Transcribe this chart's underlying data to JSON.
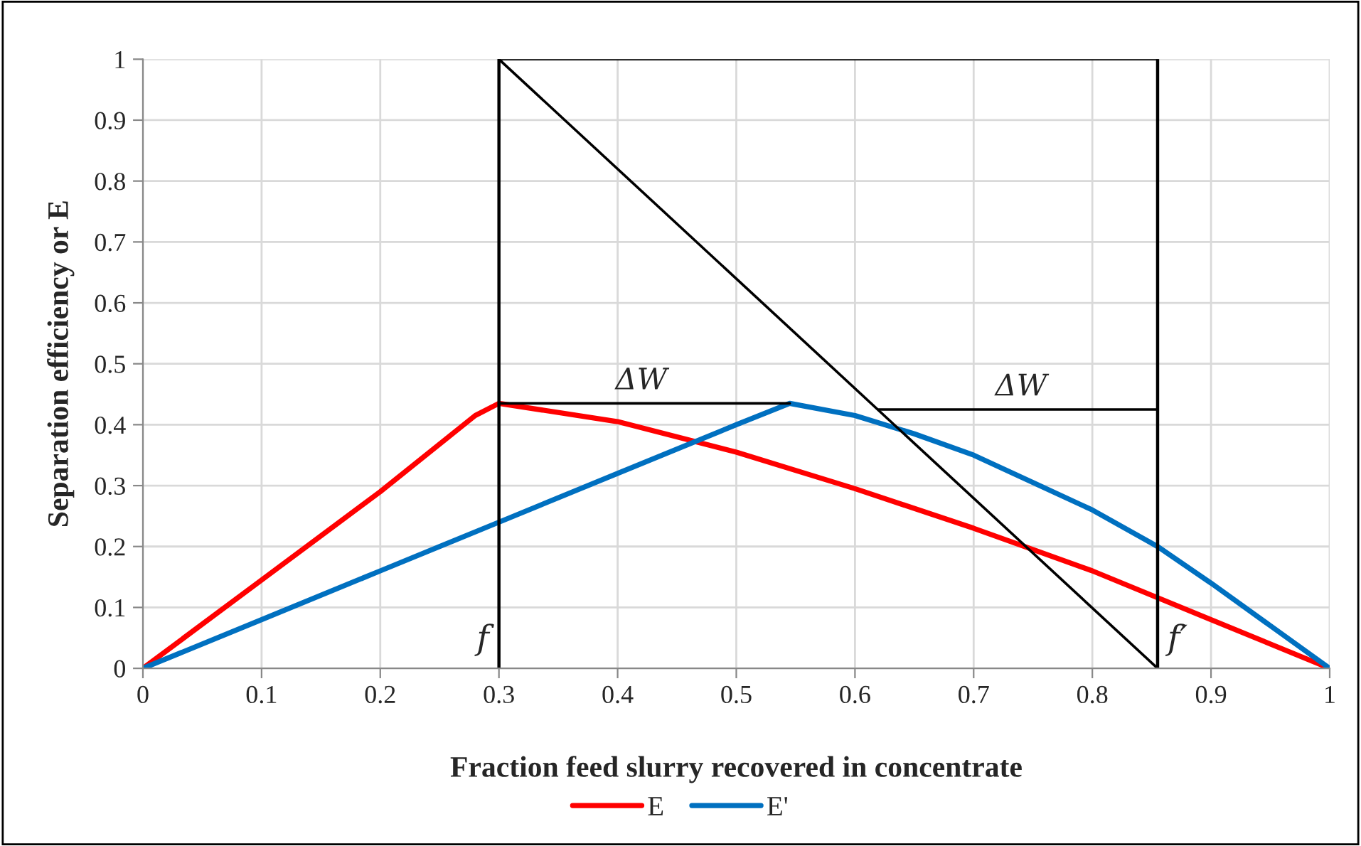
{
  "chart_data": {
    "type": "line",
    "xlabel": "Fraction feed slurry recovered in concentrate",
    "ylabel": "Separation efficiency or E",
    "series": [
      {
        "name": "E",
        "color": "#ff0000",
        "x": [
          0,
          0.1,
          0.2,
          0.28,
          0.3,
          0.4,
          0.5,
          0.6,
          0.7,
          0.8,
          0.9,
          1
        ],
        "values": [
          0,
          0.145,
          0.29,
          0.415,
          0.435,
          0.405,
          0.355,
          0.295,
          0.23,
          0.16,
          0.08,
          0
        ]
      },
      {
        "name": "E'",
        "color": "#0070c0",
        "x": [
          0,
          0.1,
          0.2,
          0.3,
          0.4,
          0.5,
          0.545,
          0.6,
          0.65,
          0.7,
          0.75,
          0.8,
          0.855,
          0.9,
          0.95,
          1
        ],
        "values": [
          0,
          0.08,
          0.16,
          0.24,
          0.32,
          0.4,
          0.435,
          0.415,
          0.385,
          0.35,
          0.305,
          0.26,
          0.2,
          0.14,
          0.07,
          0
        ]
      },
      {
        "color": "#000000",
        "x": [
          0.3,
          0.855
        ],
        "values": [
          1,
          0
        ]
      },
      {
        "color": "#000000",
        "x": [
          0.3,
          0.855
        ],
        "values": [
          1,
          1
        ]
      },
      {
        "color": "#000000",
        "x": [
          0.3,
          0.545
        ],
        "values": [
          0.435,
          0.435
        ]
      },
      {
        "color": "#000000",
        "x": [
          0.62,
          0.855
        ],
        "values": [
          0.425,
          0.425
        ]
      }
    ],
    "ref_lines": [
      {
        "axis": "x",
        "value": 0.3,
        "label": "f",
        "color": "#000000"
      },
      {
        "axis": "x",
        "value": 0.855,
        "label": "f′",
        "color": "#000000"
      }
    ],
    "annotations": [
      {
        "text": "ΔW",
        "x": 0.42,
        "y": 0.435
      },
      {
        "text": "ΔW",
        "x": 0.74,
        "y": 0.425
      }
    ],
    "xlim": [
      0,
      1
    ],
    "ylim": [
      0,
      1
    ],
    "xticks": [
      0,
      0.1,
      0.2,
      0.3,
      0.4,
      0.5,
      0.6,
      0.7,
      0.8,
      0.9,
      1
    ],
    "yticks": [
      0,
      0.1,
      0.2,
      0.3,
      0.4,
      0.5,
      0.6,
      0.7,
      0.8,
      0.9,
      1
    ],
    "grid": true,
    "legend": "bottom",
    "marker": "none",
    "line_style": "solid"
  }
}
